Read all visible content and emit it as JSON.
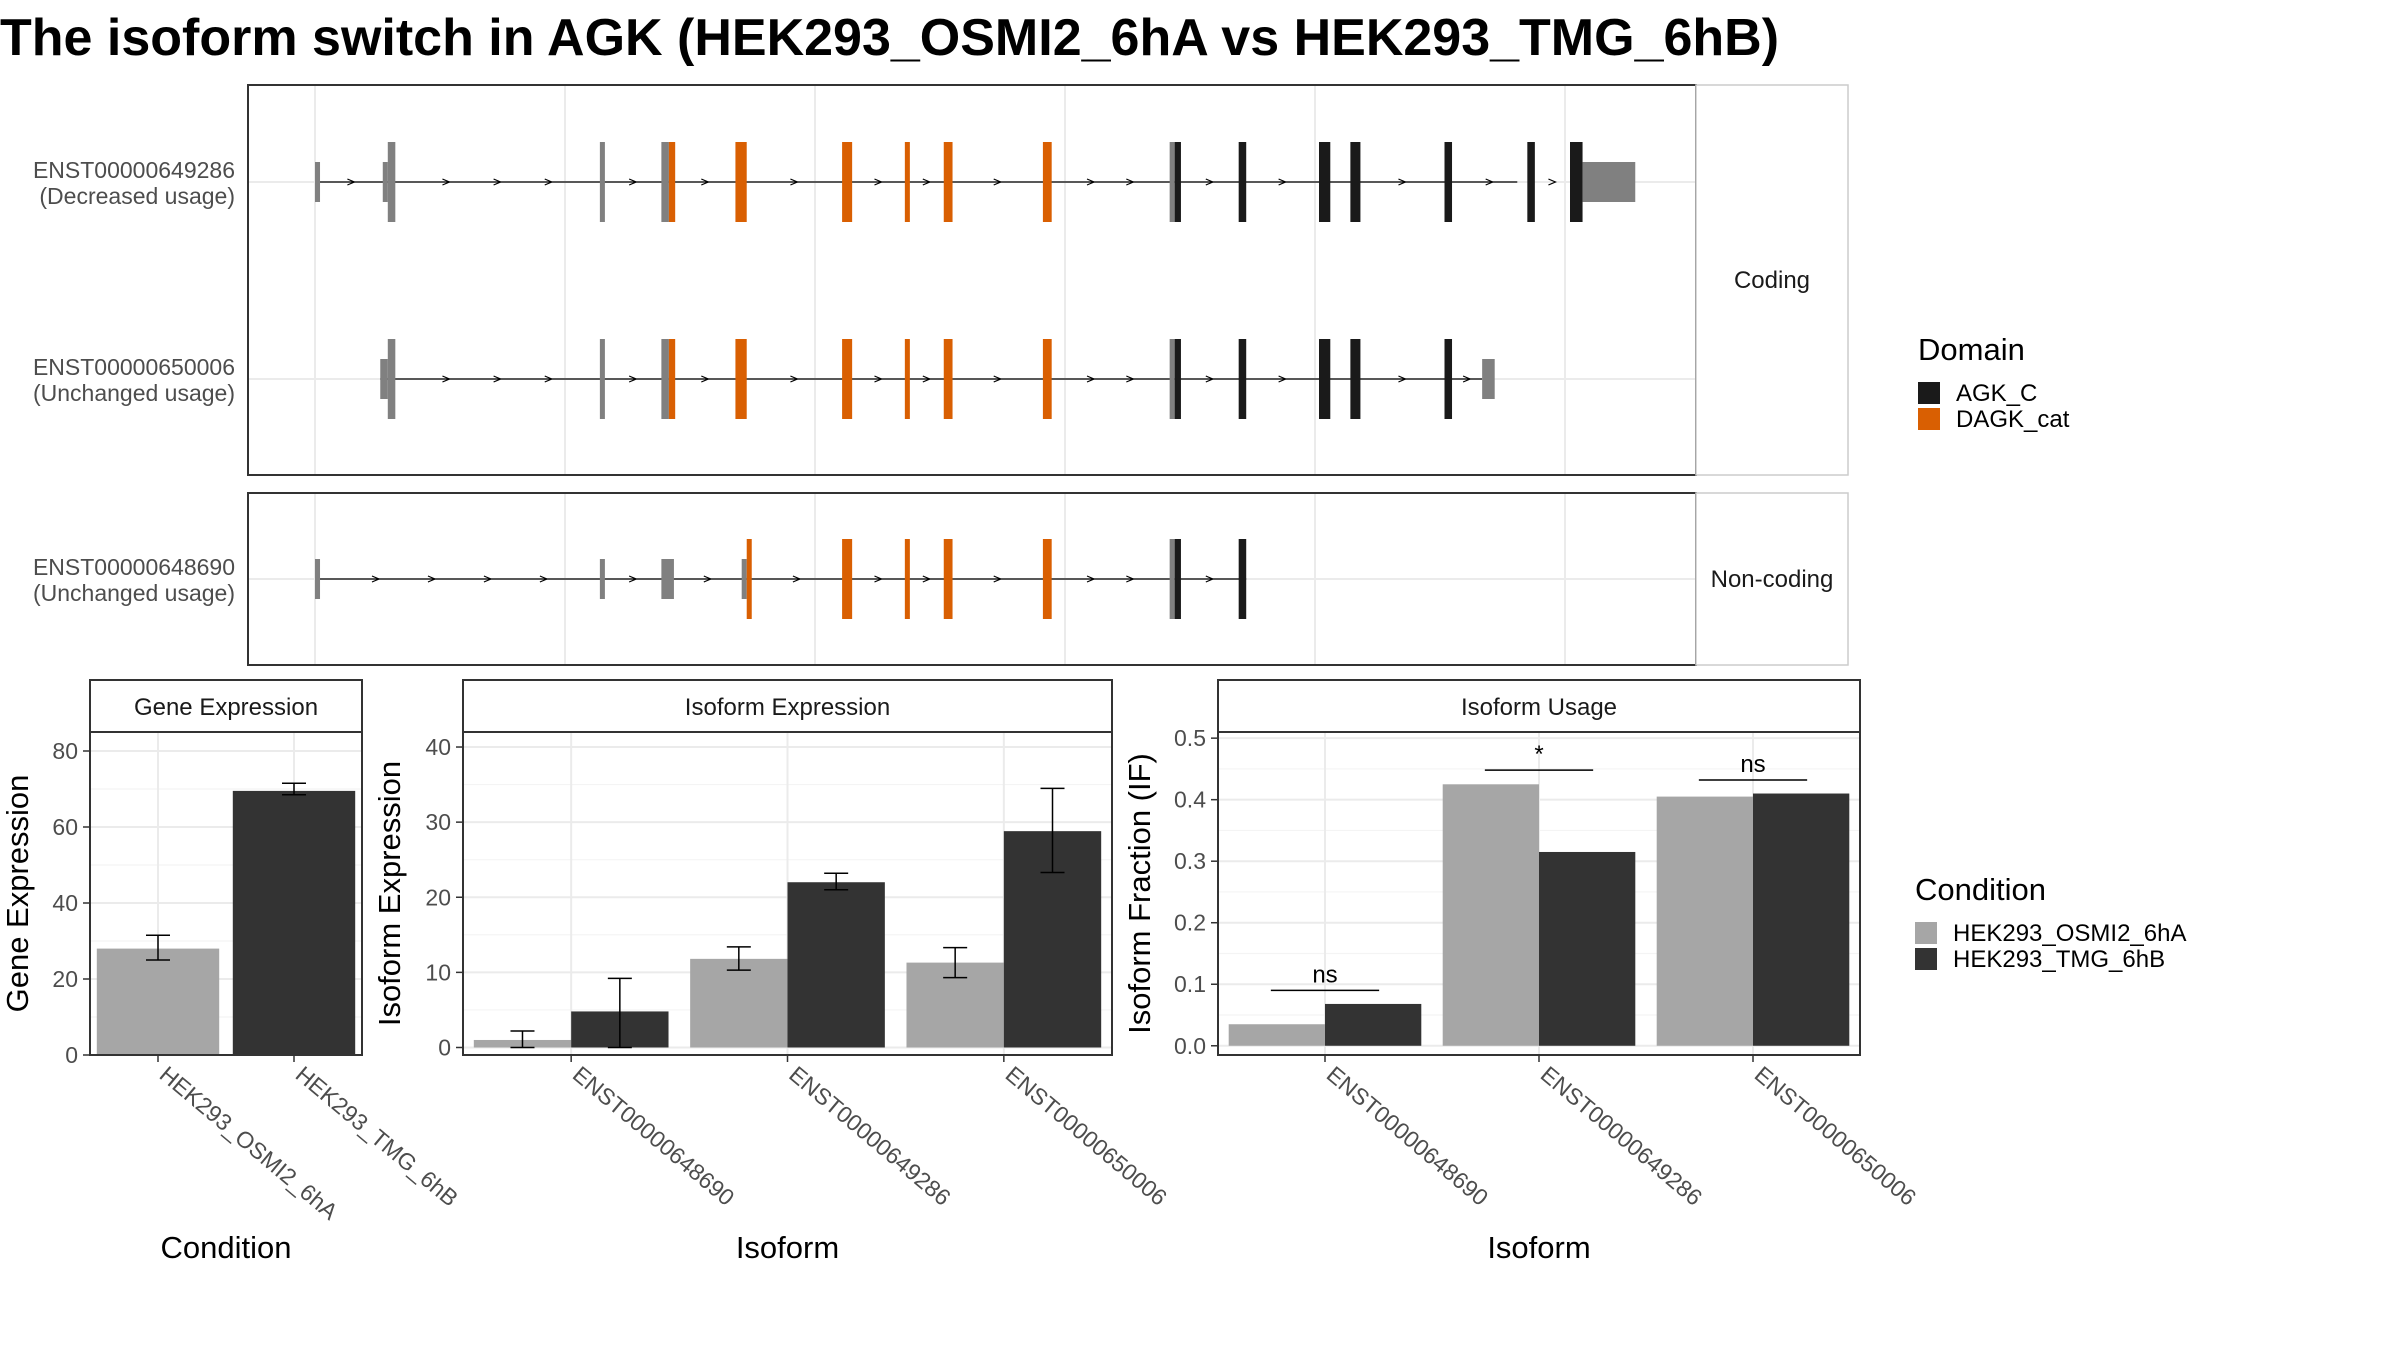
{
  "title": "The isoform switch in AGK (HEK293_OSMI2_6hA vs HEK293_TMG_6hB)",
  "colors": {
    "intron": "#000000",
    "noncoding_exon": "#808080",
    "AGK_C": "#1a1a1a",
    "DAGK_cat": "#d95f02",
    "condA": "#a6a6a6",
    "condB": "#333333",
    "grid": "#ebebeb",
    "strip_bg": "#ffffff"
  },
  "transcript_panels": [
    {
      "label": "Coding",
      "transcripts": [
        {
          "name": "ENST00000649286",
          "usage": "(Decreased usage)",
          "span": [
            0.0,
            0.958
          ],
          "exons": [
            {
              "s": 0.0,
              "e": 0.004,
              "tall": false,
              "domain": null
            },
            {
              "s": 0.054,
              "e": 0.058,
              "tall": false,
              "domain": null
            },
            {
              "s": 0.058,
              "e": 0.064,
              "tall": true,
              "domain": null
            },
            {
              "s": 0.227,
              "e": 0.231,
              "tall": true,
              "domain": null
            },
            {
              "s": 0.276,
              "e": 0.282,
              "tall": true,
              "domain": null
            },
            {
              "s": 0.282,
              "e": 0.287,
              "tall": true,
              "domain": "DAGK_cat"
            },
            {
              "s": 0.335,
              "e": 0.344,
              "tall": true,
              "domain": "DAGK_cat"
            },
            {
              "s": 0.42,
              "e": 0.428,
              "tall": true,
              "domain": "DAGK_cat"
            },
            {
              "s": 0.47,
              "e": 0.474,
              "tall": true,
              "domain": "DAGK_cat"
            },
            {
              "s": 0.501,
              "e": 0.508,
              "tall": true,
              "domain": "DAGK_cat"
            },
            {
              "s": 0.58,
              "e": 0.587,
              "tall": true,
              "domain": "DAGK_cat"
            },
            {
              "s": 0.681,
              "e": 0.685,
              "tall": true,
              "domain": null
            },
            {
              "s": 0.685,
              "e": 0.69,
              "tall": true,
              "domain": "AGK_C"
            },
            {
              "s": 0.736,
              "e": 0.742,
              "tall": true,
              "domain": "AGK_C"
            },
            {
              "s": 0.8,
              "e": 0.809,
              "tall": true,
              "domain": "AGK_C"
            },
            {
              "s": 0.825,
              "e": 0.833,
              "tall": true,
              "domain": "AGK_C"
            },
            {
              "s": 0.9,
              "e": 0.906,
              "tall": true,
              "domain": "AGK_C"
            },
            {
              "s": 0.966,
              "e": 0.972,
              "tall": true,
              "domain": "AGK_C"
            },
            {
              "s": 1.0,
              "e": 1.01,
              "tall": true,
              "domain": "AGK_C"
            },
            {
              "s": 1.01,
              "e": 1.052,
              "tall": false,
              "domain": null
            }
          ]
        },
        {
          "name": "ENST00000650006",
          "usage": "(Unchanged usage)",
          "span": [
            0.052,
            0.93
          ],
          "exons": [
            {
              "s": 0.052,
              "e": 0.058,
              "tall": false,
              "domain": null
            },
            {
              "s": 0.058,
              "e": 0.064,
              "tall": true,
              "domain": null
            },
            {
              "s": 0.227,
              "e": 0.231,
              "tall": true,
              "domain": null
            },
            {
              "s": 0.276,
              "e": 0.282,
              "tall": true,
              "domain": null
            },
            {
              "s": 0.282,
              "e": 0.287,
              "tall": true,
              "domain": "DAGK_cat"
            },
            {
              "s": 0.335,
              "e": 0.344,
              "tall": true,
              "domain": "DAGK_cat"
            },
            {
              "s": 0.42,
              "e": 0.428,
              "tall": true,
              "domain": "DAGK_cat"
            },
            {
              "s": 0.47,
              "e": 0.474,
              "tall": true,
              "domain": "DAGK_cat"
            },
            {
              "s": 0.501,
              "e": 0.508,
              "tall": true,
              "domain": "DAGK_cat"
            },
            {
              "s": 0.58,
              "e": 0.587,
              "tall": true,
              "domain": "DAGK_cat"
            },
            {
              "s": 0.681,
              "e": 0.685,
              "tall": true,
              "domain": null
            },
            {
              "s": 0.685,
              "e": 0.69,
              "tall": true,
              "domain": "AGK_C"
            },
            {
              "s": 0.736,
              "e": 0.742,
              "tall": true,
              "domain": "AGK_C"
            },
            {
              "s": 0.8,
              "e": 0.809,
              "tall": true,
              "domain": "AGK_C"
            },
            {
              "s": 0.825,
              "e": 0.833,
              "tall": true,
              "domain": "AGK_C"
            },
            {
              "s": 0.9,
              "e": 0.906,
              "tall": true,
              "domain": "AGK_C"
            },
            {
              "s": 0.93,
              "e": 0.94,
              "tall": false,
              "domain": null
            }
          ]
        }
      ]
    },
    {
      "label": "Non-coding",
      "transcripts": [
        {
          "name": "ENST00000648690",
          "usage": "(Unchanged usage)",
          "span": [
            0.0,
            0.742
          ],
          "exons": [
            {
              "s": 0.0,
              "e": 0.004,
              "tall": false,
              "domain": null
            },
            {
              "s": 0.227,
              "e": 0.231,
              "tall": false,
              "domain": null
            },
            {
              "s": 0.276,
              "e": 0.286,
              "tall": false,
              "domain": null
            },
            {
              "s": 0.34,
              "e": 0.344,
              "tall": false,
              "domain": null
            },
            {
              "s": 0.344,
              "e": 0.348,
              "tall": true,
              "domain": "DAGK_cat"
            },
            {
              "s": 0.42,
              "e": 0.428,
              "tall": true,
              "domain": "DAGK_cat"
            },
            {
              "s": 0.47,
              "e": 0.474,
              "tall": true,
              "domain": "DAGK_cat"
            },
            {
              "s": 0.501,
              "e": 0.508,
              "tall": true,
              "domain": "DAGK_cat"
            },
            {
              "s": 0.58,
              "e": 0.587,
              "tall": true,
              "domain": "DAGK_cat"
            },
            {
              "s": 0.681,
              "e": 0.685,
              "tall": true,
              "domain": null
            },
            {
              "s": 0.685,
              "e": 0.69,
              "tall": true,
              "domain": "AGK_C"
            },
            {
              "s": 0.736,
              "e": 0.742,
              "tall": true,
              "domain": "AGK_C"
            }
          ]
        }
      ]
    }
  ],
  "domain_legend": {
    "title": "Domain",
    "items": [
      {
        "label": "AGK_C",
        "key": "AGK_C"
      },
      {
        "label": "DAGK_cat",
        "key": "DAGK_cat"
      }
    ]
  },
  "condition_legend": {
    "title": "Condition",
    "items": [
      {
        "label": "HEK293_OSMI2_6hA",
        "key": "condA"
      },
      {
        "label": "HEK293_TMG_6hB",
        "key": "condB"
      }
    ]
  },
  "chart_data": [
    {
      "type": "bar",
      "title": "Gene Expression",
      "xlabel": "Condition",
      "ylabel": "Gene Expression",
      "ylim": [
        0,
        85
      ],
      "yticks": [
        0,
        20,
        40,
        60,
        80
      ],
      "categories": [
        "HEK293_OSMI2_6hA",
        "HEK293_TMG_6hB"
      ],
      "series": [
        {
          "values": [
            28.0,
            69.5
          ],
          "err_low": [
            25.0,
            68.5
          ],
          "err_high": [
            31.5,
            71.5
          ]
        }
      ]
    },
    {
      "type": "bar",
      "title": "Isoform Expression",
      "xlabel": "Isoform",
      "ylabel": "Isoform Expression",
      "ylim": [
        -1,
        42
      ],
      "yticks": [
        0,
        10,
        20,
        30,
        40
      ],
      "categories": [
        "ENST00000648690",
        "ENST00000649286",
        "ENST00000650006"
      ],
      "series": [
        {
          "name": "HEK293_OSMI2_6hA",
          "values": [
            1.0,
            11.8,
            11.3
          ],
          "err_low": [
            0.0,
            10.3,
            9.3
          ],
          "err_high": [
            2.2,
            13.4,
            13.3
          ]
        },
        {
          "name": "HEK293_TMG_6hB",
          "values": [
            4.8,
            22.0,
            28.8
          ],
          "err_low": [
            0.0,
            21.0,
            23.3
          ],
          "err_high": [
            9.2,
            23.2,
            34.5
          ]
        }
      ]
    },
    {
      "type": "bar",
      "title": "Isoform Usage",
      "xlabel": "Isoform",
      "ylabel": "Isoform Fraction (IF)",
      "ylim": [
        -0.015,
        0.51
      ],
      "yticks": [
        0.0,
        0.1,
        0.2,
        0.3,
        0.4,
        0.5
      ],
      "ytick_labels": [
        "0.0",
        "0.1",
        "0.2",
        "0.3",
        "0.4",
        "0.5"
      ],
      "categories": [
        "ENST00000648690",
        "ENST00000649286",
        "ENST00000650006"
      ],
      "series": [
        {
          "name": "HEK293_OSMI2_6hA",
          "values": [
            0.035,
            0.425,
            0.405
          ]
        },
        {
          "name": "HEK293_TMG_6hB",
          "values": [
            0.068,
            0.315,
            0.41
          ]
        }
      ],
      "annotations": [
        {
          "text": "ns",
          "category": 0,
          "level": 0.09
        },
        {
          "text": "*",
          "category": 1,
          "level": 0.448
        },
        {
          "text": "ns",
          "category": 2,
          "level": 0.432
        }
      ]
    }
  ]
}
